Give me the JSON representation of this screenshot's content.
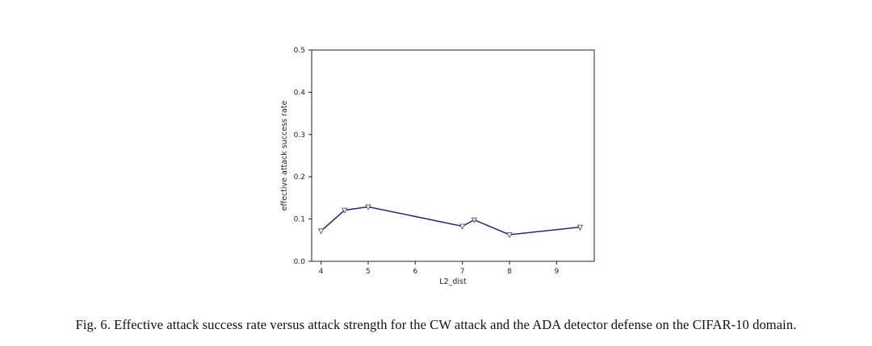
{
  "chart_data": {
    "type": "line",
    "title": "",
    "xlabel": "L2_dist",
    "ylabel": "effective attack success rate",
    "xlim": [
      3.8,
      9.8
    ],
    "ylim": [
      0.0,
      0.5
    ],
    "xticks": [
      4,
      5,
      6,
      7,
      8,
      9
    ],
    "yticks": [
      0.0,
      0.1,
      0.2,
      0.3,
      0.4,
      0.5
    ],
    "ytick_labels": [
      "0.0",
      "0.1",
      "0.2",
      "0.3",
      "0.4",
      "0.5"
    ],
    "grid": false,
    "legend": "none",
    "series": [
      {
        "color": "#1f1fb4",
        "marker": "v",
        "x": [
          4.0,
          4.5,
          5.0,
          7.0,
          7.25,
          8.0,
          9.5
        ],
        "y": [
          0.072,
          0.121,
          0.129,
          0.083,
          0.098,
          0.063,
          0.081
        ]
      }
    ]
  },
  "caption": "Fig. 6.  Effective attack success rate versus attack strength for the CW attack and the ADA detector defense on the CIFAR-10 domain."
}
